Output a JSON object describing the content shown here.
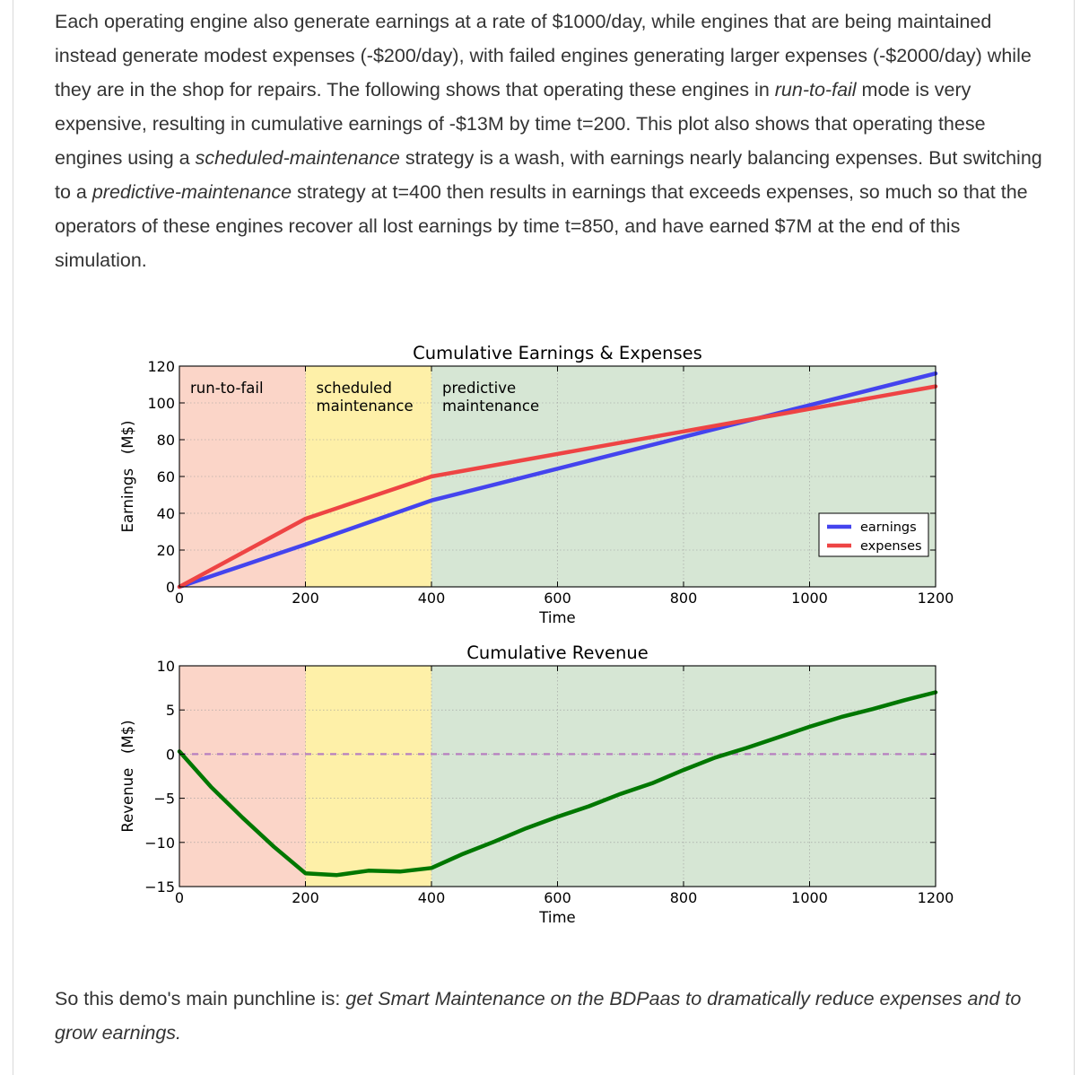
{
  "intro": {
    "t1": "Each operating engine also generate earnings at a rate of $1000/day, while engines that are being maintained instead generate modest expenses (-$200/day), with failed engines generating larger expenses (-$2000/day) while they are in the shop for repairs. The following shows that operating these engines in ",
    "e1": "run-to-fail",
    "t2": " mode is very expensive, resulting in cumulative earnings of -$13M by time t=200. This plot also shows that operating these engines using a ",
    "e2": "scheduled-maintenance",
    "t3": " strategy is a wash, with earnings nearly balancing expenses. But switching to a ",
    "e3": "predictive-maintenance",
    "t4": " strategy at t=400 then results in earnings that exceeds expenses, so much so that the operators of these engines recover all lost earnings by time t=850, and have earned $7M at the end of this simulation."
  },
  "conclusion": {
    "t1": "So this demo's main punchline is: ",
    "e1": "get Smart Maintenance on the BDPaas to dramatically reduce expenses and to grow earnings."
  },
  "regions": [
    {
      "from": 0,
      "to": 200,
      "label_lines": [
        "run-to-fail"
      ],
      "color": "#fbd5c8"
    },
    {
      "from": 200,
      "to": 400,
      "label_lines": [
        "scheduled",
        "maintenance"
      ],
      "color": "#fef0a8"
    },
    {
      "from": 400,
      "to": 1200,
      "label_lines": [
        "predictive",
        "maintenance"
      ],
      "color": "#d6e6d4"
    }
  ],
  "chart_data": [
    {
      "type": "line",
      "title": "Cumulative Earnings & Expenses",
      "xlabel": "Time",
      "ylabel": "Earnings   (M$)",
      "xlim": [
        0,
        1200
      ],
      "ylim": [
        0,
        120
      ],
      "xticks": [
        0,
        200,
        400,
        600,
        800,
        1000,
        1200
      ],
      "yticks": [
        0,
        20,
        40,
        60,
        80,
        100,
        120
      ],
      "grid": true,
      "legend_position": "lower-right",
      "series": [
        {
          "name": "earnings",
          "color": "#4444ee",
          "x": [
            0,
            200,
            400,
            1200
          ],
          "y": [
            0,
            23,
            47,
            116
          ]
        },
        {
          "name": "expenses",
          "color": "#ee4444",
          "x": [
            0,
            200,
            400,
            1200
          ],
          "y": [
            0,
            37,
            60,
            109
          ]
        }
      ]
    },
    {
      "type": "line",
      "title": "Cumulative Revenue",
      "xlabel": "Time",
      "ylabel": "Revenue   (M$)",
      "xlim": [
        0,
        1200
      ],
      "ylim": [
        -15,
        10
      ],
      "xticks": [
        0,
        200,
        400,
        600,
        800,
        1000,
        1200
      ],
      "yticks": [
        10,
        5,
        0,
        -5,
        -10,
        -15
      ],
      "ytick_labels": [
        "10",
        "5",
        "0",
        "−5",
        "−10",
        "−15"
      ],
      "grid": true,
      "reference_line": {
        "y": 0,
        "color": "#b77fc0",
        "style": "dashed"
      },
      "series": [
        {
          "name": "",
          "color": "#007700",
          "x": [
            0,
            50,
            100,
            150,
            200,
            250,
            300,
            350,
            400,
            450,
            500,
            550,
            600,
            650,
            700,
            750,
            800,
            850,
            900,
            950,
            1000,
            1050,
            1100,
            1150,
            1200
          ],
          "y": [
            0.3,
            -3.7,
            -7.2,
            -10.5,
            -13.5,
            -13.7,
            -13.2,
            -13.3,
            -12.9,
            -11.3,
            -9.9,
            -8.4,
            -7.1,
            -5.9,
            -4.5,
            -3.3,
            -1.8,
            -0.4,
            0.7,
            1.9,
            3.1,
            4.2,
            5.1,
            6.1,
            7.0
          ]
        }
      ]
    }
  ]
}
